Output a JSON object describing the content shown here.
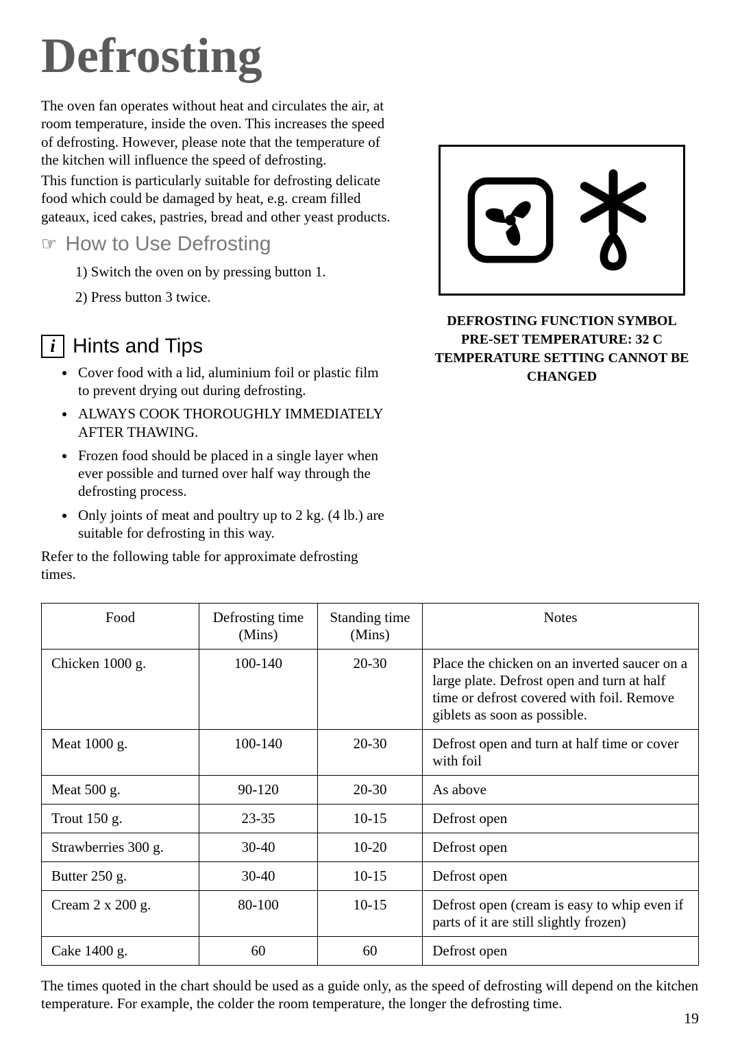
{
  "title": "Defrosting",
  "intro_paragraphs": [
    "The oven fan operates without heat and circulates the air, at room temperature, inside the oven. This increases the speed of defrosting. However, please note that the temperature of the kitchen will influence the speed of defrosting.",
    "This function is particularly suitable for defrosting delicate food which could be damaged by heat, e.g. cream filled gateaux, iced cakes, pastries, bread and other yeast products."
  ],
  "how_to_use": {
    "heading": "How to Use Defrosting",
    "steps": [
      "1)  Switch the oven on by pressing button 1.",
      "2)  Press button 3 twice."
    ]
  },
  "hints": {
    "heading": "Hints and Tips",
    "items": [
      "Cover food with a lid, aluminium foil or plastic film to prevent drying out during defrosting.",
      "ALWAYS COOK THOROUGHLY IMMEDIATELY AFTER THAWING.",
      "Frozen food should be placed in a single layer when ever possible and turned over half way through the defrosting process.",
      "Only joints of meat and poultry up to 2 kg. (4 lb.) are suitable for defrosting in this way."
    ],
    "refer_text": "Refer to the following table for approximate defrosting times."
  },
  "symbol_caption_lines": [
    "DEFROSTING FUNCTION SYMBOL",
    "PRE-SET TEMPERATURE: 32 C",
    "TEMPERATURE SETTING CANNOT BE CHANGED"
  ],
  "table": {
    "columns": [
      "Food",
      "Defrosting time (Mins)",
      "Standing time (Mins)",
      "Notes"
    ],
    "col_widths": [
      "24%",
      "18%",
      "16%",
      "42%"
    ],
    "rows": [
      [
        "Chicken 1000 g.",
        "100-140",
        "20-30",
        "Place the chicken on an inverted saucer on a large plate. Defrost open and turn at half time or defrost covered with foil. Remove giblets as soon as possible."
      ],
      [
        "Meat 1000 g.",
        "100-140",
        "20-30",
        "Defrost open and turn at half time or cover with foil"
      ],
      [
        "Meat 500 g.",
        "90-120",
        "20-30",
        "As above"
      ],
      [
        "Trout 150 g.",
        "23-35",
        "10-15",
        "Defrost open"
      ],
      [
        "Strawberries 300 g.",
        "30-40",
        "10-20",
        "Defrost open"
      ],
      [
        "Butter 250 g.",
        "30-40",
        "10-15",
        "Defrost open"
      ],
      [
        "Cream 2 x 200 g.",
        "80-100",
        "10-15",
        "Defrost open (cream is easy to whip even if parts of it are still slightly frozen)"
      ],
      [
        "Cake 1400 g.",
        "60",
        "60",
        "Defrost open"
      ]
    ]
  },
  "footnote": "The times quoted in the chart should be used as a guide only, as the speed of defrosting will depend on the kitchen temperature. For example, the colder the room temperature, the longer the defrosting time.",
  "page_number": "19",
  "colors": {
    "title_gray": "#5a5a5a",
    "heading_gray": "#7a7a7a",
    "text": "#000000",
    "background": "#ffffff"
  }
}
